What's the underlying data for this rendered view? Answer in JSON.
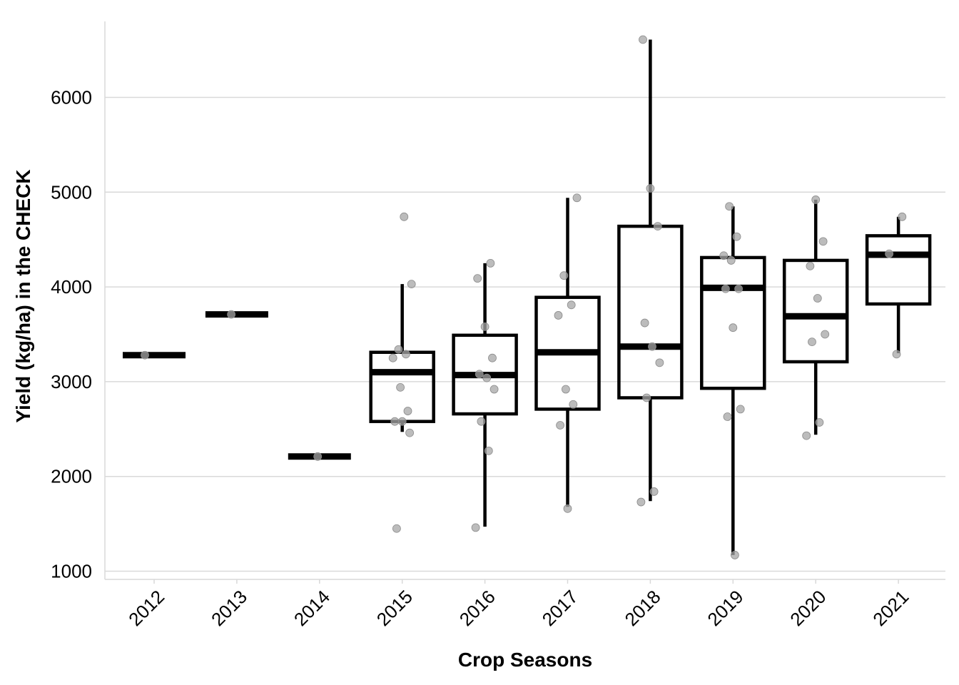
{
  "chart_data": {
    "type": "box",
    "xlabel": "Crop Seasons",
    "ylabel": "Yield (kg/ha) in the CHECK",
    "ylim": [
      900,
      6700
    ],
    "yticks": [
      1000,
      2000,
      3000,
      4000,
      5000,
      6000
    ],
    "grid": "horizontal major lines",
    "legend": "none",
    "colors": {
      "box": "#000000",
      "point": "#a6a6a6",
      "grid": "#d9d9d9"
    },
    "categories": [
      "2012",
      "2013",
      "2014",
      "2015",
      "2016",
      "2017",
      "2018",
      "2019",
      "2020",
      "2021"
    ],
    "boxes": [
      {
        "season": "2012",
        "min": 3280,
        "q1": 3280,
        "median": 3280,
        "q3": 3280,
        "max": 3280,
        "points": [
          3280
        ]
      },
      {
        "season": "2013",
        "min": 3710,
        "q1": 3710,
        "median": 3710,
        "q3": 3710,
        "max": 3710,
        "points": [
          3710
        ]
      },
      {
        "season": "2014",
        "min": 2210,
        "q1": 2210,
        "median": 2210,
        "q3": 2210,
        "max": 2210,
        "points": [
          2210
        ]
      },
      {
        "season": "2015",
        "min": 2470,
        "q1": 2580,
        "median": 3100,
        "q3": 3310,
        "max": 4030,
        "points": [
          4740,
          4030,
          3340,
          3290,
          3250,
          2940,
          2690,
          2580,
          2580,
          2460,
          1450
        ]
      },
      {
        "season": "2016",
        "min": 1470,
        "q1": 2660,
        "median": 3070,
        "q3": 3490,
        "max": 4250,
        "points": [
          4250,
          4090,
          3580,
          3250,
          3080,
          3040,
          2920,
          2580,
          2270,
          1460
        ]
      },
      {
        "season": "2017",
        "min": 1680,
        "q1": 2710,
        "median": 3310,
        "q3": 3890,
        "max": 4940,
        "points": [
          4940,
          4120,
          3810,
          3700,
          2920,
          2760,
          2540,
          1660
        ]
      },
      {
        "season": "2018",
        "min": 1740,
        "q1": 2830,
        "median": 3370,
        "q3": 4640,
        "max": 6610,
        "points": [
          6610,
          5040,
          4640,
          3620,
          3370,
          3200,
          2830,
          1840,
          1730
        ]
      },
      {
        "season": "2019",
        "min": 1170,
        "q1": 2930,
        "median": 3990,
        "q3": 4310,
        "max": 4850,
        "points": [
          4850,
          4530,
          4330,
          4280,
          3980,
          3980,
          3570,
          2710,
          2630,
          1170
        ]
      },
      {
        "season": "2020",
        "min": 2440,
        "q1": 3210,
        "median": 3690,
        "q3": 4280,
        "max": 4920,
        "points": [
          4920,
          4480,
          4220,
          3880,
          3500,
          3420,
          2570,
          2430
        ]
      },
      {
        "season": "2021",
        "min": 3300,
        "q1": 3820,
        "median": 4340,
        "q3": 4540,
        "max": 4740,
        "points": [
          4740,
          4350,
          3290
        ]
      }
    ]
  }
}
